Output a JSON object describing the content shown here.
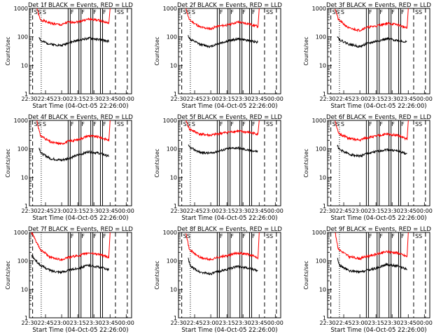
{
  "chart_data": [
    {
      "type": "line",
      "title": "Det 1f BLACK = Events, RED = LLD",
      "xlabel": "Start Time (04-Oct-05 22:26:00)",
      "ylabel": "Counts/sec",
      "yscale": "log",
      "ylim": [
        1,
        1000
      ],
      "x_ticks": [
        "22:30",
        "22:45",
        "23:00",
        "23:15",
        "23:30",
        "23:45",
        "00:00"
      ],
      "y_ticks": [
        "1",
        "10",
        "100",
        "1000"
      ],
      "annotations": [
        "SS",
        "S",
        "F",
        "F",
        "F",
        "F",
        "SS"
      ],
      "series": [
        {
          "color": "#ff0000",
          "x": [
            "22:37",
            "22:40",
            "22:50",
            "23:00",
            "23:05",
            "23:15",
            "23:25",
            "23:35",
            "23:44"
          ],
          "values": [
            1000,
            400,
            300,
            260,
            320,
            340,
            420,
            380,
            300
          ]
        },
        {
          "color": "#000000",
          "x": [
            "22:39",
            "22:41",
            "22:50",
            "23:00",
            "23:05",
            "23:15",
            "23:25",
            "23:35",
            "23:44"
          ],
          "values": [
            100,
            70,
            55,
            50,
            60,
            75,
            90,
            80,
            70
          ]
        }
      ]
    },
    {
      "type": "line",
      "title": "Det 2f BLACK = Events, RED = LLD",
      "xlabel": "Start Time (04-Oct-05 22:26:00)",
      "ylabel": "Counts/sec",
      "yscale": "log",
      "ylim": [
        1,
        1000
      ],
      "x_ticks": [
        "22:30",
        "22:45",
        "23:00",
        "23:15",
        "23:30",
        "23:45",
        "00:00"
      ],
      "y_ticks": [
        "1",
        "10",
        "100",
        "1000"
      ],
      "annotations": [
        "SS",
        "S",
        "F",
        "F",
        "F",
        "F",
        "SS"
      ],
      "series": [
        {
          "color": "#ff0000",
          "x": [
            "22:37",
            "22:40",
            "22:50",
            "23:00",
            "23:05",
            "23:15",
            "23:25",
            "23:35",
            "23:44"
          ],
          "values": [
            1000,
            400,
            220,
            190,
            230,
            260,
            330,
            290,
            230
          ]
        },
        {
          "color": "#000000",
          "x": [
            "22:39",
            "22:41",
            "22:50",
            "23:00",
            "23:05",
            "23:15",
            "23:25",
            "23:35",
            "23:44"
          ],
          "values": [
            110,
            80,
            55,
            45,
            55,
            70,
            85,
            75,
            65
          ]
        }
      ]
    },
    {
      "type": "line",
      "title": "Det 3f BLACK = Events, RED = LLD",
      "xlabel": "Start Time (04-Oct-05 22:26:00)",
      "ylabel": "Counts/sec",
      "yscale": "log",
      "ylim": [
        1,
        1000
      ],
      "x_ticks": [
        "22:30",
        "22:45",
        "23:00",
        "23:15",
        "23:30",
        "23:45",
        "00:00"
      ],
      "y_ticks": [
        "1",
        "10",
        "100",
        "1000"
      ],
      "annotations": [
        "SS",
        "S",
        "F",
        "F",
        "F",
        "F",
        "SS"
      ],
      "series": [
        {
          "color": "#ff0000",
          "x": [
            "22:37",
            "22:40",
            "22:50",
            "23:00",
            "23:05",
            "23:15",
            "23:25",
            "23:35",
            "23:44"
          ],
          "values": [
            1000,
            400,
            200,
            170,
            210,
            240,
            300,
            270,
            200
          ]
        },
        {
          "color": "#000000",
          "x": [
            "22:39",
            "22:41",
            "22:50",
            "23:00",
            "23:05",
            "23:15",
            "23:25",
            "23:35",
            "23:44"
          ],
          "values": [
            110,
            80,
            55,
            45,
            55,
            70,
            85,
            75,
            65
          ]
        }
      ]
    },
    {
      "type": "line",
      "title": "Det 4f BLACK = Events, RED = LLD",
      "xlabel": "Start Time (04-Oct-05 22:26:00)",
      "ylabel": "Counts/sec",
      "yscale": "log",
      "ylim": [
        1,
        1000
      ],
      "x_ticks": [
        "22:30",
        "22:45",
        "23:00",
        "23:15",
        "23:30",
        "23:45",
        "00:00"
      ],
      "y_ticks": [
        "1",
        "10",
        "100",
        "1000"
      ],
      "annotations": [
        "SS",
        "S",
        "F",
        "F",
        "F",
        "F",
        "SS"
      ],
      "series": [
        {
          "color": "#ff0000",
          "x": [
            "22:37",
            "22:40",
            "22:50",
            "23:00",
            "23:05",
            "23:15",
            "23:25",
            "23:35",
            "23:44"
          ],
          "values": [
            1000,
            300,
            170,
            150,
            180,
            210,
            290,
            260,
            200
          ]
        },
        {
          "color": "#000000",
          "x": [
            "22:39",
            "22:41",
            "22:50",
            "23:00",
            "23:05",
            "23:15",
            "23:25",
            "23:35",
            "23:44"
          ],
          "values": [
            110,
            70,
            45,
            40,
            45,
            60,
            80,
            70,
            55
          ]
        }
      ]
    },
    {
      "type": "line",
      "title": "Det 5f BLACK = Events, RED = LLD",
      "xlabel": "Start Time (04-Oct-05 22:26:00)",
      "ylabel": "Counts/sec",
      "yscale": "log",
      "ylim": [
        1,
        1000
      ],
      "x_ticks": [
        "22:30",
        "22:45",
        "23:00",
        "23:15",
        "23:30",
        "23:45",
        "00:00"
      ],
      "y_ticks": [
        "1",
        "10",
        "100",
        "1000"
      ],
      "annotations": [
        "SS",
        "S",
        "F",
        "F",
        "F",
        "F",
        "SS"
      ],
      "series": [
        {
          "color": "#ff0000",
          "x": [
            "22:37",
            "22:40",
            "22:50",
            "23:00",
            "23:05",
            "23:15",
            "23:25",
            "23:35",
            "23:44"
          ],
          "values": [
            1000,
            500,
            330,
            300,
            330,
            380,
            420,
            380,
            330
          ]
        },
        {
          "color": "#000000",
          "x": [
            "22:39",
            "22:41",
            "22:50",
            "23:00",
            "23:05",
            "23:15",
            "23:25",
            "23:35",
            "23:44"
          ],
          "values": [
            130,
            110,
            75,
            70,
            80,
            100,
            110,
            90,
            80
          ]
        }
      ]
    },
    {
      "type": "line",
      "title": "Det 6f BLACK = Events, RED = LLD",
      "xlabel": "Start Time (04-Oct-05 22:26:00)",
      "ylabel": "Counts/sec",
      "yscale": "log",
      "ylim": [
        1,
        1000
      ],
      "x_ticks": [
        "22:30",
        "22:45",
        "23:00",
        "23:15",
        "23:30",
        "23:45",
        "00:00"
      ],
      "y_ticks": [
        "1",
        "10",
        "100",
        "1000"
      ],
      "annotations": [
        "SS",
        "S",
        "F",
        "F",
        "F",
        "F",
        "SS"
      ],
      "series": [
        {
          "color": "#ff0000",
          "x": [
            "22:37",
            "22:40",
            "22:50",
            "23:00",
            "23:05",
            "23:15",
            "23:25",
            "23:35",
            "23:44"
          ],
          "values": [
            1000,
            350,
            230,
            200,
            240,
            280,
            330,
            300,
            220
          ]
        },
        {
          "color": "#000000",
          "x": [
            "22:39",
            "22:41",
            "22:50",
            "23:00",
            "23:05",
            "23:15",
            "23:25",
            "23:35",
            "23:44"
          ],
          "values": [
            130,
            95,
            65,
            55,
            65,
            80,
            95,
            85,
            65
          ]
        }
      ]
    },
    {
      "type": "line",
      "title": "Det 7f BLACK = Events, RED = LLD",
      "xlabel": "Start Time (04-Oct-05 22:26:00)",
      "ylabel": "Counts/sec",
      "yscale": "log",
      "ylim": [
        1,
        1000
      ],
      "x_ticks": [
        "22:30",
        "22:45",
        "23:00",
        "23:15",
        "23:30",
        "23:45",
        "00:00"
      ],
      "y_ticks": [
        "1",
        "10",
        "100",
        "1000"
      ],
      "annotations": [
        "F",
        "F",
        "F",
        "F"
      ],
      "series": [
        {
          "color": "#ff0000",
          "x": [
            "22:32",
            "22:40",
            "22:50",
            "23:00",
            "23:05",
            "23:15",
            "23:25",
            "23:35",
            "23:44"
          ],
          "values": [
            1000,
            250,
            130,
            110,
            130,
            150,
            190,
            170,
            130
          ]
        },
        {
          "color": "#000000",
          "x": [
            "22:32",
            "22:40",
            "22:50",
            "23:00",
            "23:05",
            "23:15",
            "23:25",
            "23:35",
            "23:44"
          ],
          "values": [
            150,
            70,
            45,
            40,
            45,
            55,
            70,
            60,
            50
          ]
        }
      ]
    },
    {
      "type": "line",
      "title": "Det 8f BLACK = Events, RED = LLD",
      "xlabel": "Start Time (04-Oct-05 22:26:00)",
      "ylabel": "Counts/sec",
      "yscale": "log",
      "ylim": [
        1,
        1000
      ],
      "x_ticks": [
        "22:30",
        "22:45",
        "23:00",
        "23:15",
        "23:30",
        "23:45",
        "00:00"
      ],
      "y_ticks": [
        "1",
        "10",
        "100",
        "1000"
      ],
      "annotations": [
        "SS",
        "F",
        "F",
        "F",
        "F",
        "SS"
      ],
      "series": [
        {
          "color": "#ff0000",
          "x": [
            "22:37",
            "22:40",
            "22:50",
            "23:00",
            "23:05",
            "23:15",
            "23:25",
            "23:35",
            "23:44"
          ],
          "values": [
            1000,
            250,
            130,
            110,
            130,
            150,
            190,
            170,
            130
          ]
        },
        {
          "color": "#000000",
          "x": [
            "22:39",
            "22:41",
            "22:50",
            "23:00",
            "23:05",
            "23:15",
            "23:25",
            "23:35",
            "23:44"
          ],
          "values": [
            120,
            65,
            40,
            35,
            40,
            50,
            65,
            55,
            45
          ]
        }
      ]
    },
    {
      "type": "line",
      "title": "Det 9f BLACK = Events, RED = LLD",
      "xlabel": "Start Time (04-Oct-05 22:26:00)",
      "ylabel": "Counts/sec",
      "yscale": "log",
      "ylim": [
        1,
        1000
      ],
      "x_ticks": [
        "22:30",
        "22:45",
        "23:00",
        "23:15",
        "23:30",
        "23:45",
        "00:00"
      ],
      "y_ticks": [
        "1",
        "10",
        "100",
        "1000"
      ],
      "annotations": [
        "F",
        "F",
        "F",
        "F",
        "SS"
      ],
      "series": [
        {
          "color": "#ff0000",
          "x": [
            "22:37",
            "22:40",
            "22:50",
            "23:00",
            "23:05",
            "23:15",
            "23:25",
            "23:35",
            "23:44"
          ],
          "values": [
            1000,
            260,
            140,
            120,
            140,
            170,
            210,
            190,
            140
          ]
        },
        {
          "color": "#000000",
          "x": [
            "22:39",
            "22:41",
            "22:50",
            "23:00",
            "23:05",
            "23:15",
            "23:25",
            "23:35",
            "23:44"
          ],
          "values": [
            130,
            70,
            45,
            40,
            45,
            55,
            75,
            65,
            50
          ]
        }
      ]
    }
  ]
}
